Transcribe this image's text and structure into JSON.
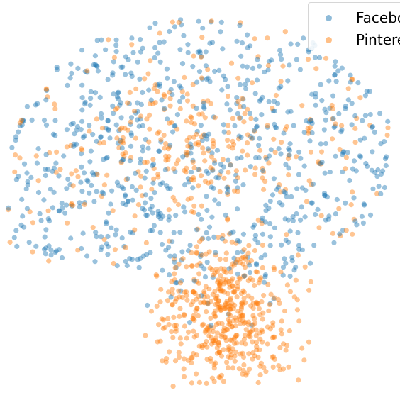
{
  "chart_data": {
    "type": "scatter",
    "title": "",
    "xlabel": "",
    "ylabel": "",
    "axes_visible": false,
    "grid": false,
    "legend_position": "top-right",
    "point_alpha": 0.45,
    "series": [
      {
        "name": "Facebook",
        "color": "#1f77b4",
        "count": 780,
        "distribution": "broad cloud covering upper and middle region, sparse at bottom"
      },
      {
        "name": "Pinterest",
        "color": "#ff7f0e",
        "count": 820,
        "distribution": "concentrated dense lobe in lower-middle region plus scattered points across upper region"
      }
    ]
  },
  "legend": {
    "items": [
      {
        "label": "Facebook",
        "color": "#1f77b4"
      },
      {
        "label": "Pinterest",
        "color": "#ff7f0e"
      }
    ]
  }
}
